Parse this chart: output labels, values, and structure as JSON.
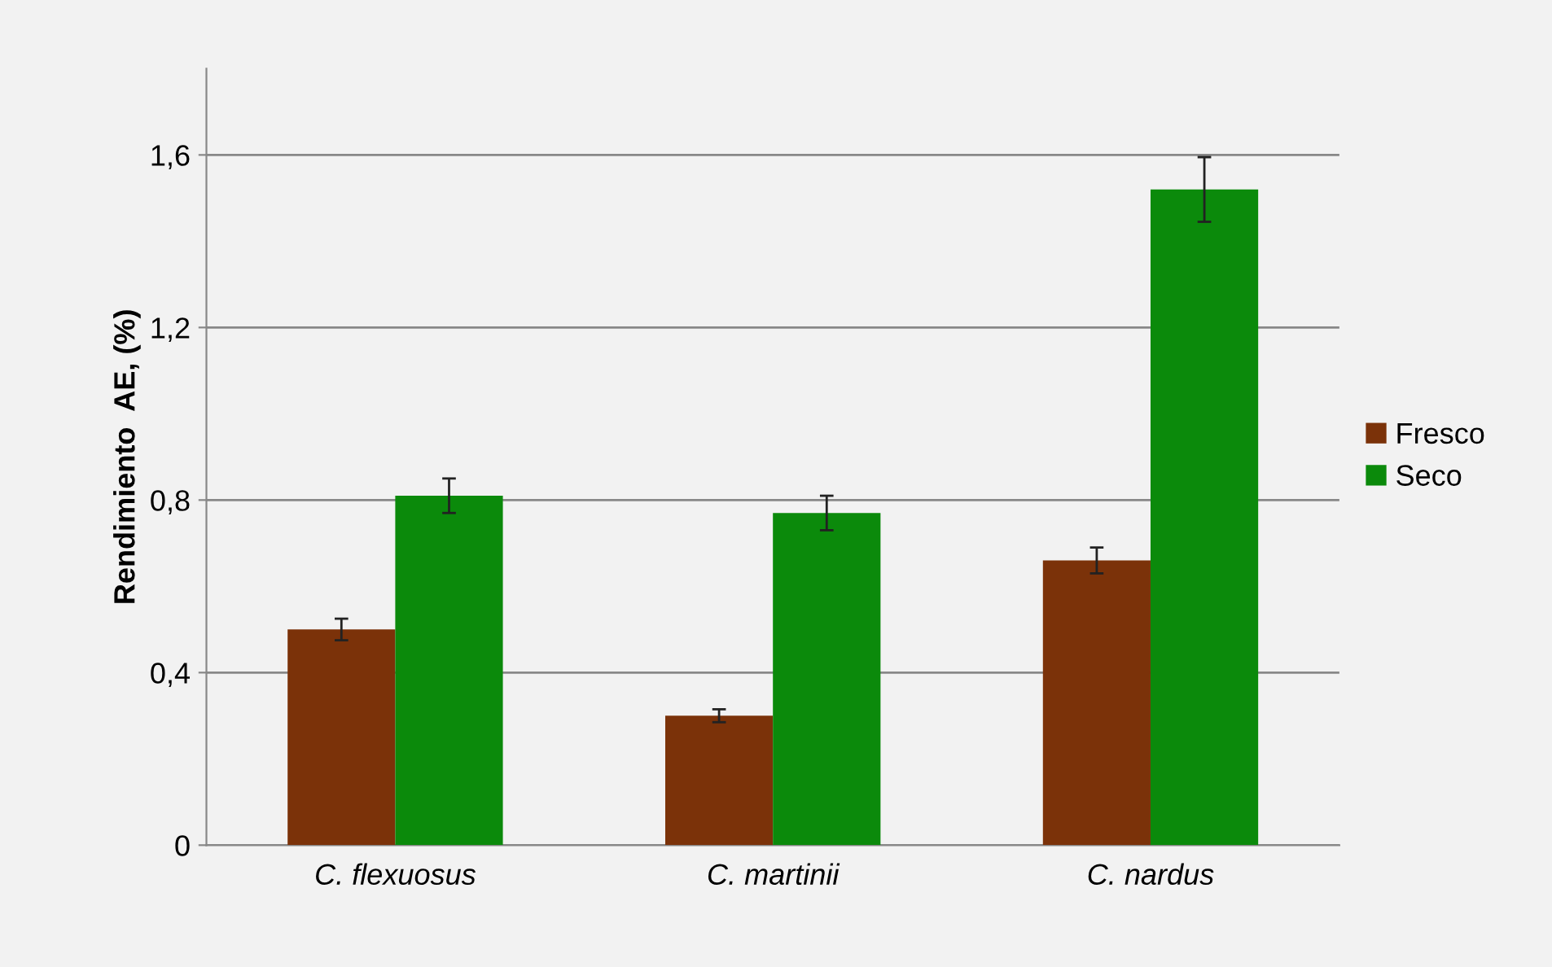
{
  "chart_data": {
    "type": "bar",
    "ylabel": "Rendimiento  AE, (%)",
    "categories": [
      "C. flexuosus",
      "C. martinii",
      "C. nardus"
    ],
    "series": [
      {
        "name": "Fresco",
        "color": "#7b3209",
        "values": [
          0.5,
          0.3,
          0.66
        ],
        "errors": [
          0.025,
          0.015,
          0.03
        ]
      },
      {
        "name": "Seco",
        "color": "#0b8a0b",
        "values": [
          0.81,
          0.77,
          1.52
        ],
        "errors": [
          0.04,
          0.04,
          0.075
        ]
      }
    ],
    "ylim": [
      0,
      1.8
    ],
    "yticks": [
      0,
      {
        "value": 0.4,
        "label": "0,4"
      },
      {
        "value": 0.8,
        "label": "0,8"
      },
      {
        "value": 1.2,
        "label": "1,2"
      },
      {
        "value": 1.6,
        "label": "1,6"
      }
    ],
    "grid": "y",
    "legend": "right"
  }
}
